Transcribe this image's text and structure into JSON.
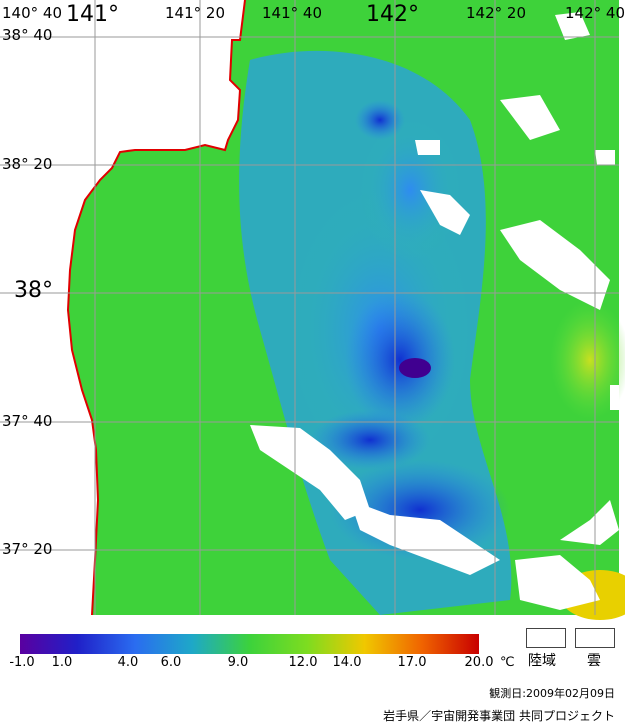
{
  "map": {
    "lon_labels": [
      "140° 40",
      "141°",
      "141° 20",
      "141° 40",
      "142°",
      "142° 20",
      "142° 40"
    ],
    "lat_labels": [
      "38° 40",
      "38° 20",
      "38°",
      "37° 40",
      "37° 20"
    ]
  },
  "legend": {
    "ticks": [
      "-1.0",
      "1.0",
      "4.0",
      "6.0",
      "9.0",
      "12.0",
      "14.0",
      "17.0",
      "20.0"
    ],
    "unit": "℃",
    "land_label": "陸域",
    "cloud_label": "雲",
    "colors": [
      "#5a00a0",
      "#2020c8",
      "#2a6cf0",
      "#1ea8c8",
      "#3cd23c",
      "#7ddc20",
      "#f0c800",
      "#f06400",
      "#c80000"
    ]
  },
  "observation_date": "観測日:2009年02月09日",
  "credit": "岩手県／宇宙開発事業団 共同プロジェクト"
}
